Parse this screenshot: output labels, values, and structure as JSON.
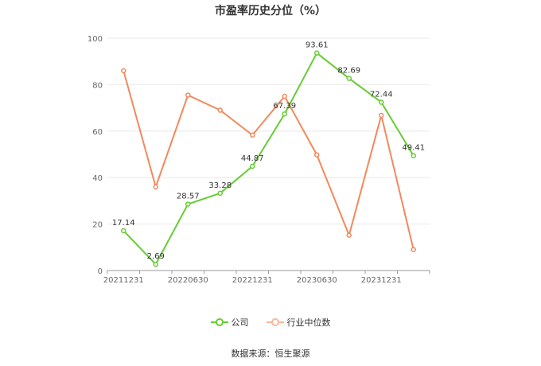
{
  "chart_data": {
    "type": "line",
    "title": "市盈率历史分位（%）",
    "xlabel": "",
    "ylabel": "",
    "ylim": [
      0,
      100
    ],
    "yticks": [
      0,
      20,
      40,
      60,
      80,
      100
    ],
    "x": [
      "20211231",
      "20220331",
      "20220630",
      "20220930",
      "20221231",
      "20230331",
      "20230630",
      "20230930",
      "20231231",
      "20240331"
    ],
    "xtick_labels": [
      "20211231",
      "20220630",
      "20221231",
      "20230630",
      "20231231"
    ],
    "series": [
      {
        "name": "公司",
        "color": "#66cc33",
        "values": [
          17.14,
          2.69,
          28.57,
          33.28,
          44.87,
          67.39,
          93.61,
          82.69,
          72.44,
          49.41
        ],
        "labels": [
          "17.14",
          "2.69",
          "28.57",
          "33.28",
          "44.87",
          "67.39",
          "93.61",
          "82.69",
          "72.44",
          "49.41"
        ]
      },
      {
        "name": "行业中位数",
        "color": "#f2895c",
        "values": [
          86,
          36,
          75.5,
          69,
          58.3,
          75,
          49.8,
          15.2,
          66.8,
          9
        ]
      }
    ],
    "grid": true,
    "legend_position": "bottom-center",
    "source": "数据来源：恒生聚源"
  }
}
